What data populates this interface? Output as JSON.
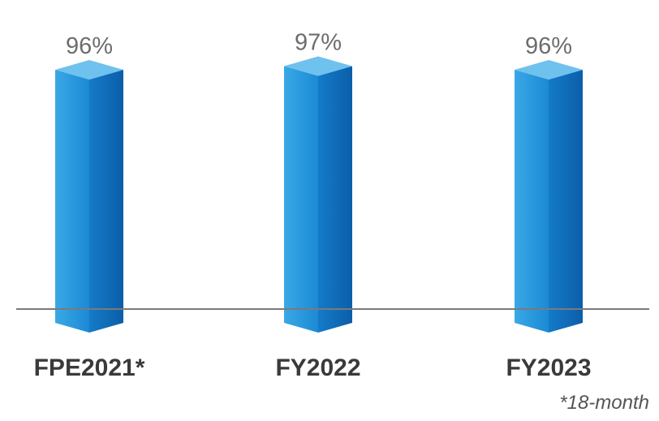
{
  "chart_data": {
    "type": "bar",
    "categories": [
      "FPE2021*",
      "FY2022",
      "FY2023"
    ],
    "values": [
      96,
      97,
      96
    ],
    "value_labels": [
      "96%",
      "97%",
      "96%"
    ],
    "ylim": [
      0,
      100
    ],
    "grid": false,
    "legend": "none",
    "colors": {
      "bar_front": "#1e90d8",
      "bar_side": "#0f67b6",
      "bar_top": "#6fc1ee",
      "baseline": "#7a7a7a"
    }
  },
  "footnote": "*18-month"
}
